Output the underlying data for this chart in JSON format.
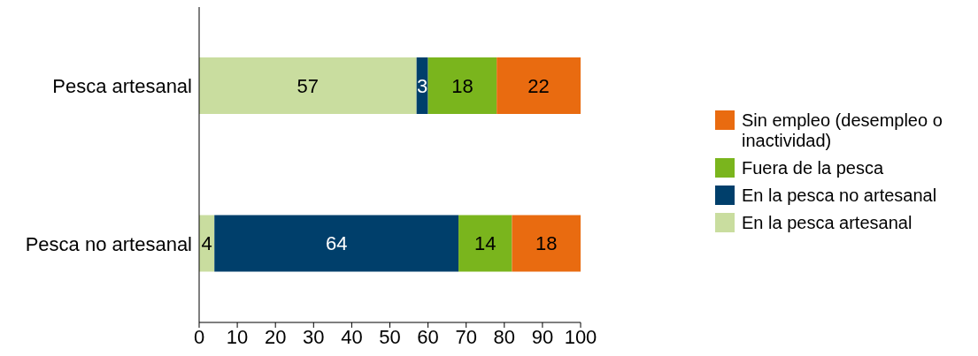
{
  "chart_data": {
    "type": "bar",
    "orientation": "horizontal",
    "stacked": true,
    "categories": [
      "Pesca artesanal",
      "Pesca no artesanal"
    ],
    "series": [
      {
        "name": "En la pesca artesanal",
        "color": "#c9dd9f",
        "values": [
          57,
          4
        ]
      },
      {
        "name": "En la pesca no artesanal",
        "color": "#003f6b",
        "values": [
          3,
          64
        ]
      },
      {
        "name": "Fuera de la pesca",
        "color": "#7ab51d",
        "values": [
          18,
          14
        ]
      },
      {
        "name": "Sin empleo (desempleo o inactividad)",
        "color": "#e96b10",
        "values": [
          22,
          18
        ]
      }
    ],
    "xlim": [
      0,
      100
    ],
    "xticks": [
      0,
      10,
      20,
      30,
      40,
      50,
      60,
      70,
      80,
      90,
      100
    ],
    "data_labels": true,
    "grid": false,
    "legend": "right"
  }
}
